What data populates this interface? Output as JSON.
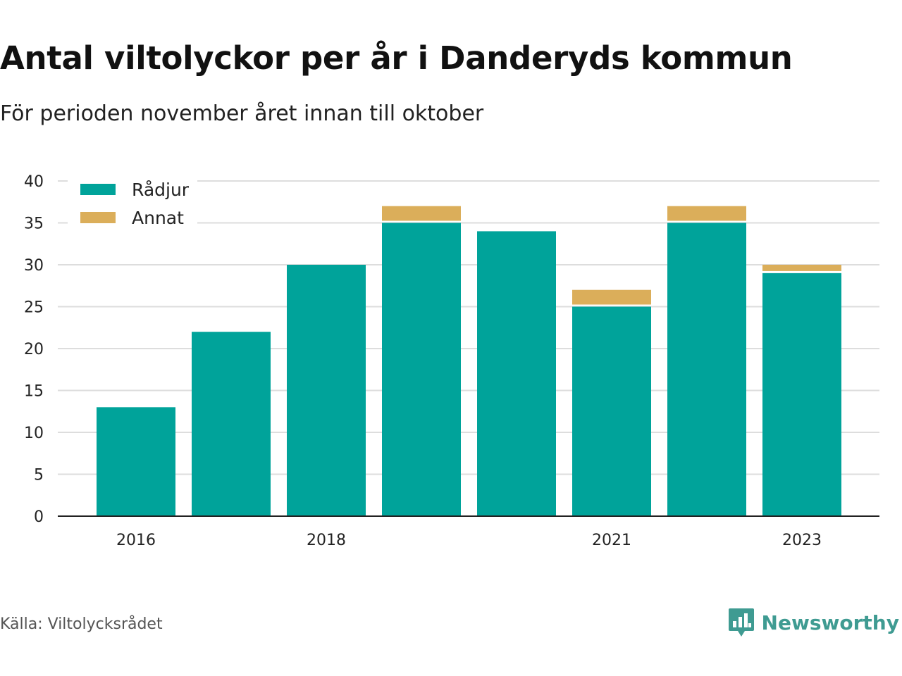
{
  "header": {
    "title": "Antal viltolyckor per år i Danderyds kommun",
    "subtitle": "För perioden november året innan till oktober"
  },
  "footer": {
    "source": "Källa: Viltolycksrådet",
    "brand_name": "Newsworthy",
    "brand_icon": "bar-chart-speech-bubble-icon"
  },
  "colors": {
    "radjur": "#00a39a",
    "annat": "#dbae5a",
    "grid": "#dddddd",
    "axis": "#222222",
    "brand": "#3f9b92"
  },
  "chart_data": {
    "type": "bar",
    "stacked": true,
    "categories": [
      "2016",
      "2017",
      "2018",
      "2019",
      "2020",
      "2021",
      "2022",
      "2023"
    ],
    "x_tick_labels": [
      "2016",
      "",
      "2018",
      "",
      "",
      "2021",
      "",
      "2023"
    ],
    "series": [
      {
        "name": "Rådjur",
        "values": [
          13,
          22,
          30,
          35,
          34,
          25,
          35,
          29
        ]
      },
      {
        "name": "Annat",
        "values": [
          0,
          0,
          0,
          2,
          0,
          2,
          2,
          1
        ]
      }
    ],
    "ylim": [
      0,
      40
    ],
    "yticks": [
      "0",
      "5",
      "10",
      "15",
      "20",
      "25",
      "30",
      "35",
      "40"
    ],
    "grid": true,
    "legend_position": "top-left",
    "xlabel": "",
    "ylabel": ""
  }
}
